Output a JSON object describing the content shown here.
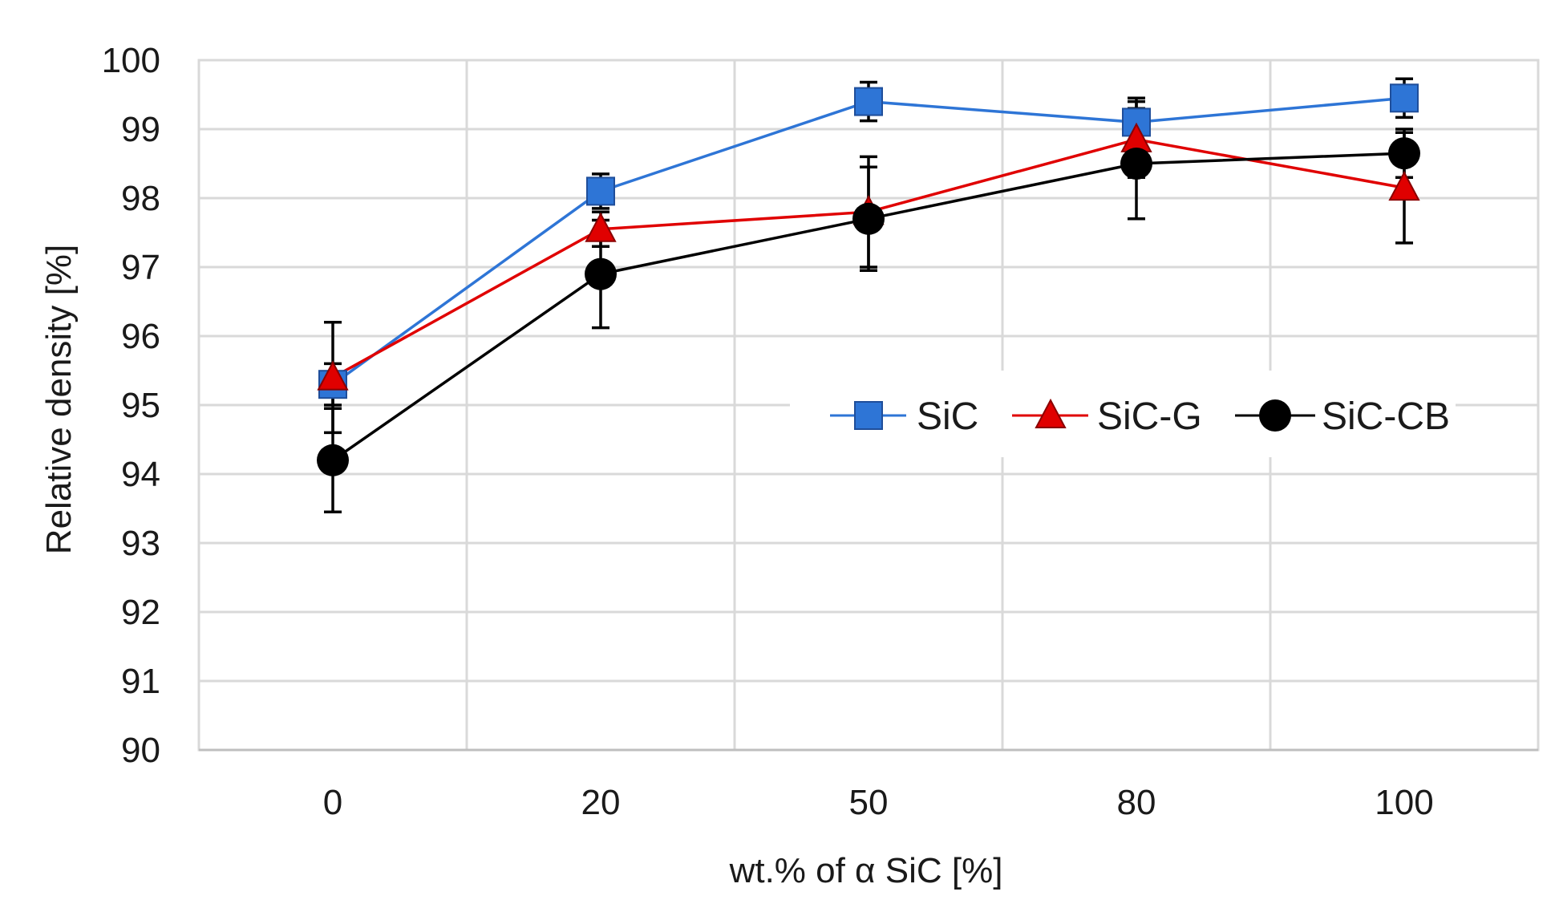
{
  "chart_data": {
    "type": "line",
    "title": "",
    "xlabel": "wt.% of α SiC [%]",
    "ylabel": "Relative density  [%]",
    "categories": [
      "0",
      "20",
      "50",
      "80",
      "100"
    ],
    "ylim": [
      90,
      100
    ],
    "yticks": [
      "90",
      "91",
      "92",
      "93",
      "94",
      "95",
      "96",
      "97",
      "98",
      "99",
      "100"
    ],
    "grid": true,
    "legend_position": "center-right",
    "series": [
      {
        "name": "SiC",
        "color": "#2E75D6",
        "marker": "square",
        "values": [
          95.3,
          98.1,
          99.4,
          99.1,
          99.45
        ],
        "error": [
          0.3,
          0.25,
          0.28,
          0.35,
          0.28
        ]
      },
      {
        "name": "SiC-G",
        "color": "#E00000",
        "marker": "triangle",
        "values": [
          95.4,
          97.55,
          97.8,
          98.85,
          98.15
        ],
        "error": [
          0.8,
          0.25,
          0.8,
          0.55,
          0.8
        ]
      },
      {
        "name": "SiC-CB",
        "color": "#000000",
        "marker": "circle",
        "values": [
          94.2,
          96.9,
          97.7,
          98.5,
          98.65
        ],
        "error": [
          0.75,
          0.78,
          0.75,
          0.8,
          0.35
        ]
      }
    ]
  }
}
